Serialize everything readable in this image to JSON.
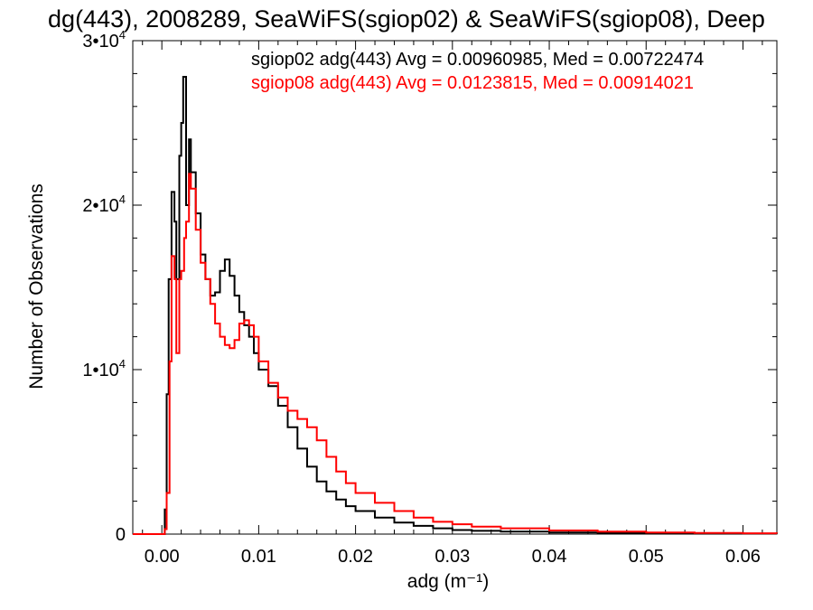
{
  "chart_data": {
    "type": "line",
    "title": "dg(443), 2008289, SeaWiFS(sgiop02) & SeaWiFS(sgiop08), Deep",
    "xlabel": "adg (m⁻¹)",
    "ylabel": "Number of Observations",
    "xlim": [
      -0.003,
      0.0635
    ],
    "ylim": [
      0,
      30000
    ],
    "x_ticks": [
      0.0,
      0.01,
      0.02,
      0.03,
      0.04,
      0.05,
      0.06
    ],
    "x_tick_labels": [
      "0.00",
      "0.01",
      "0.02",
      "0.03",
      "0.04",
      "0.05",
      "0.06"
    ],
    "y_ticks": [
      0,
      10000,
      20000,
      30000
    ],
    "y_tick_labels": [
      {
        "mant": "0",
        "exp": ""
      },
      {
        "mant": "1•10",
        "exp": "4"
      },
      {
        "mant": "2•10",
        "exp": "4"
      },
      {
        "mant": "3•10",
        "exp": "4"
      }
    ],
    "legend_placement": "top-right",
    "series": [
      {
        "name": "sgiop02",
        "label": "sgiop02 adg(443) Avg = 0.00960985, Med = 0.00722474",
        "color": "#000000",
        "x": [
          -0.003,
          0.0,
          0.0003,
          0.0005,
          0.0007,
          0.001,
          0.0013,
          0.0015,
          0.0018,
          0.002,
          0.0022,
          0.0025,
          0.0028,
          0.003,
          0.0035,
          0.004,
          0.0045,
          0.005,
          0.0055,
          0.006,
          0.0065,
          0.007,
          0.0075,
          0.008,
          0.0085,
          0.009,
          0.0095,
          0.01,
          0.011,
          0.012,
          0.013,
          0.014,
          0.015,
          0.016,
          0.017,
          0.018,
          0.019,
          0.02,
          0.022,
          0.024,
          0.026,
          0.028,
          0.03,
          0.032,
          0.035,
          0.04,
          0.045,
          0.05,
          0.055,
          0.06,
          0.0635
        ],
        "y": [
          0,
          0,
          1500,
          8500,
          15500,
          20800,
          19000,
          15500,
          23000,
          25000,
          27800,
          20000,
          24000,
          22000,
          19500,
          17000,
          15500,
          14500,
          14700,
          16000,
          16700,
          15700,
          14500,
          13500,
          12700,
          12000,
          11000,
          10000,
          9000,
          7800,
          6500,
          5200,
          4100,
          3200,
          2600,
          2100,
          1700,
          1400,
          1000,
          700,
          500,
          350,
          250,
          200,
          150,
          100,
          70,
          50,
          40,
          30,
          20
        ]
      },
      {
        "name": "sgiop08",
        "label": "sgiop08 adg(443) Avg = 0.0123815, Med = 0.00914021",
        "color": "#ff0000",
        "x": [
          -0.003,
          0.0,
          0.0003,
          0.0005,
          0.0008,
          0.001,
          0.0013,
          0.0015,
          0.0018,
          0.002,
          0.0023,
          0.0025,
          0.0028,
          0.003,
          0.0035,
          0.004,
          0.0045,
          0.005,
          0.0055,
          0.006,
          0.0065,
          0.007,
          0.0075,
          0.008,
          0.0085,
          0.009,
          0.0095,
          0.01,
          0.011,
          0.012,
          0.013,
          0.014,
          0.015,
          0.016,
          0.017,
          0.018,
          0.019,
          0.02,
          0.022,
          0.024,
          0.026,
          0.028,
          0.03,
          0.032,
          0.035,
          0.04,
          0.045,
          0.05,
          0.055,
          0.06,
          0.0635
        ],
        "y": [
          0,
          0,
          300,
          2500,
          10500,
          16900,
          15500,
          11000,
          15500,
          16000,
          18000,
          19000,
          21900,
          21000,
          18500,
          16500,
          15500,
          14000,
          12800,
          12000,
          11500,
          11300,
          11800,
          12800,
          13000,
          12700,
          12000,
          10500,
          9200,
          8300,
          7500,
          7000,
          6500,
          5700,
          4700,
          3800,
          3100,
          2500,
          1900,
          1400,
          1000,
          750,
          600,
          450,
          350,
          220,
          150,
          100,
          70,
          50,
          40
        ]
      }
    ]
  }
}
